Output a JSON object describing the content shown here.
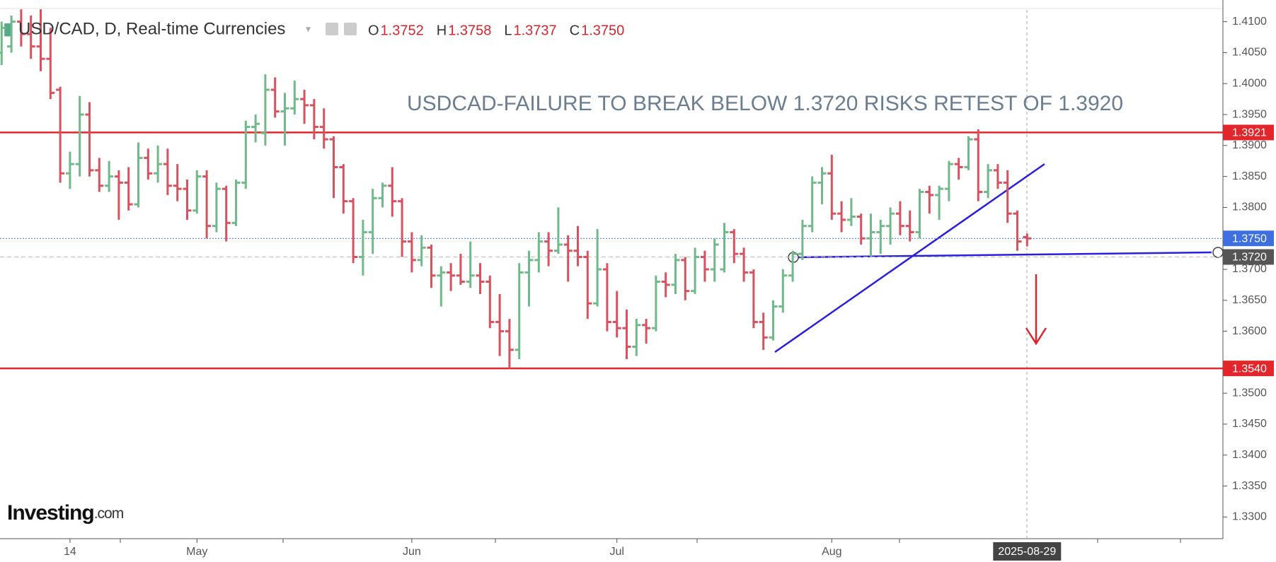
{
  "chart_data": {
    "type": "ohlc",
    "header": {
      "symbol": "USD/CAD, D, Real-time Currencies",
      "fields": [
        {
          "key": "O",
          "value": "1.3752"
        },
        {
          "key": "H",
          "value": "1.3758"
        },
        {
          "key": "L",
          "value": "1.3737"
        },
        {
          "key": "C",
          "value": "1.3750"
        }
      ]
    },
    "annotation": "USDCAD-FAILURE TO BREAK BELOW 1.3720 RISKS RETEST OF 1.3920",
    "logo": {
      "brand": "Investing",
      "suffix": ".com"
    },
    "up_color": "#6fb98a",
    "down_color": "#d9505e",
    "categories": [
      null,
      null,
      null,
      null,
      null,
      null,
      null,
      "14",
      null,
      null,
      null,
      null,
      null,
      null,
      null,
      null,
      null,
      null,
      null,
      null,
      "May",
      null,
      null,
      null,
      null,
      null,
      null,
      null,
      null,
      null,
      null,
      null,
      null,
      null,
      null,
      null,
      null,
      null,
      null,
      null,
      null,
      null,
      "Jun",
      null,
      null,
      null,
      null,
      null,
      null,
      null,
      null,
      null,
      null,
      null,
      null,
      null,
      null,
      null,
      null,
      null,
      null,
      null,
      null,
      "Jul",
      null,
      null,
      null,
      null,
      null,
      null,
      null,
      null,
      null,
      null,
      null,
      null,
      null,
      null,
      null,
      null,
      null,
      null,
      null,
      null,
      null,
      "Aug",
      null,
      null,
      null,
      null,
      null,
      null,
      null,
      null,
      null,
      null,
      null,
      null,
      null,
      null,
      null,
      null,
      null,
      null,
      null,
      "2025-08-29"
    ],
    "values": [
      [
        1.405,
        1.41,
        1.403,
        1.409
      ],
      [
        1.406,
        1.411,
        1.405,
        1.41
      ],
      [
        1.41,
        1.412,
        1.406,
        1.408
      ],
      [
        1.408,
        1.411,
        1.404,
        1.406
      ],
      [
        1.406,
        1.412,
        1.402,
        1.404
      ],
      [
        1.404,
        1.409,
        1.3975,
        1.3985
      ],
      [
        1.399,
        1.3995,
        1.384,
        1.3855
      ],
      [
        1.3855,
        1.389,
        1.383,
        1.387
      ],
      [
        1.387,
        1.398,
        1.385,
        1.395
      ],
      [
        1.395,
        1.397,
        1.385,
        1.386
      ],
      [
        1.386,
        1.388,
        1.3825,
        1.3835
      ],
      [
        1.3835,
        1.3875,
        1.3825,
        1.385
      ],
      [
        1.385,
        1.386,
        1.378,
        1.384
      ],
      [
        1.384,
        1.3865,
        1.3795,
        1.3805
      ],
      [
        1.3805,
        1.3905,
        1.38,
        1.388
      ],
      [
        1.388,
        1.3895,
        1.3845,
        1.3855
      ],
      [
        1.3855,
        1.39,
        1.384,
        1.387
      ],
      [
        1.387,
        1.3895,
        1.382,
        1.3835
      ],
      [
        1.3835,
        1.387,
        1.381,
        1.383
      ],
      [
        1.383,
        1.3845,
        1.378,
        1.3795
      ],
      [
        1.3795,
        1.386,
        1.379,
        1.385
      ],
      [
        1.385,
        1.386,
        1.375,
        1.377
      ],
      [
        1.377,
        1.384,
        1.376,
        1.383
      ],
      [
        1.383,
        1.3835,
        1.3745,
        1.3775
      ],
      [
        1.3775,
        1.3845,
        1.377,
        1.384
      ],
      [
        1.384,
        1.394,
        1.383,
        1.393
      ],
      [
        1.393,
        1.395,
        1.3905,
        1.3935
      ],
      [
        1.392,
        1.4015,
        1.39,
        1.399
      ],
      [
        1.399,
        1.401,
        1.3945,
        1.3955
      ],
      [
        1.3955,
        1.3985,
        1.39,
        1.396
      ],
      [
        1.396,
        1.4005,
        1.395,
        1.3975
      ],
      [
        1.3975,
        1.399,
        1.3935,
        1.3965
      ],
      [
        1.3965,
        1.3975,
        1.391,
        1.393
      ],
      [
        1.393,
        1.396,
        1.3895,
        1.391
      ],
      [
        1.391,
        1.3915,
        1.3815,
        1.3865
      ],
      [
        1.3865,
        1.387,
        1.379,
        1.381
      ],
      [
        1.381,
        1.3815,
        1.371,
        1.372
      ],
      [
        1.372,
        1.378,
        1.369,
        1.376
      ],
      [
        1.376,
        1.383,
        1.3725,
        1.3815
      ],
      [
        1.3815,
        1.384,
        1.38,
        1.3835
      ],
      [
        1.3835,
        1.3865,
        1.3785,
        1.381
      ],
      [
        1.381,
        1.3815,
        1.372,
        1.3745
      ],
      [
        1.3745,
        1.376,
        1.3695,
        1.3715
      ],
      [
        1.3715,
        1.3755,
        1.3705,
        1.3735
      ],
      [
        1.3735,
        1.374,
        1.367,
        1.369
      ],
      [
        1.369,
        1.3705,
        1.364,
        1.3695
      ],
      [
        1.3695,
        1.371,
        1.3665,
        1.369
      ],
      [
        1.369,
        1.3725,
        1.3675,
        1.368
      ],
      [
        1.368,
        1.3745,
        1.367,
        1.369
      ],
      [
        1.369,
        1.371,
        1.366,
        1.368
      ],
      [
        1.368,
        1.369,
        1.3605,
        1.3615
      ],
      [
        1.3615,
        1.366,
        1.356,
        1.36
      ],
      [
        1.36,
        1.362,
        1.354,
        1.357
      ],
      [
        1.357,
        1.371,
        1.3555,
        1.3695
      ],
      [
        1.3695,
        1.373,
        1.364,
        1.3715
      ],
      [
        1.3715,
        1.376,
        1.3695,
        1.3745
      ],
      [
        1.3745,
        1.376,
        1.3705,
        1.373
      ],
      [
        1.373,
        1.38,
        1.3725,
        1.374
      ],
      [
        1.374,
        1.3755,
        1.368,
        1.373
      ],
      [
        1.373,
        1.377,
        1.3705,
        1.372
      ],
      [
        1.372,
        1.373,
        1.362,
        1.3645
      ],
      [
        1.3645,
        1.3765,
        1.364,
        1.37
      ],
      [
        1.37,
        1.371,
        1.36,
        1.3615
      ],
      [
        1.3615,
        1.3665,
        1.359,
        1.3605
      ],
      [
        1.3605,
        1.3635,
        1.3555,
        1.3575
      ],
      [
        1.3575,
        1.362,
        1.356,
        1.361
      ],
      [
        1.361,
        1.362,
        1.358,
        1.3605
      ],
      [
        1.3605,
        1.369,
        1.36,
        1.368
      ],
      [
        1.368,
        1.3695,
        1.3655,
        1.3675
      ],
      [
        1.3675,
        1.3725,
        1.366,
        1.3715
      ],
      [
        1.3715,
        1.372,
        1.365,
        1.3665
      ],
      [
        1.3665,
        1.3735,
        1.366,
        1.372
      ],
      [
        1.372,
        1.373,
        1.368,
        1.37
      ],
      [
        1.37,
        1.375,
        1.368,
        1.374
      ],
      [
        1.37,
        1.3775,
        1.3695,
        1.376
      ],
      [
        1.376,
        1.3765,
        1.371,
        1.3725
      ],
      [
        1.3725,
        1.3735,
        1.368,
        1.3695
      ],
      [
        1.3695,
        1.37,
        1.3605,
        1.3615
      ],
      [
        1.3615,
        1.363,
        1.357,
        1.359
      ],
      [
        1.359,
        1.365,
        1.3585,
        1.364
      ],
      [
        1.364,
        1.37,
        1.363,
        1.369
      ],
      [
        1.369,
        1.373,
        1.368,
        1.3725
      ],
      [
        1.3725,
        1.378,
        1.3715,
        1.377
      ],
      [
        1.377,
        1.385,
        1.376,
        1.384
      ],
      [
        1.384,
        1.3865,
        1.3805,
        1.3855
      ],
      [
        1.3855,
        1.3885,
        1.378,
        1.379
      ],
      [
        1.379,
        1.381,
        1.376,
        1.378
      ],
      [
        1.378,
        1.3815,
        1.377,
        1.3785
      ],
      [
        1.3785,
        1.379,
        1.374,
        1.375
      ],
      [
        1.375,
        1.379,
        1.372,
        1.376
      ],
      [
        1.376,
        1.378,
        1.3725,
        1.377
      ],
      [
        1.377,
        1.38,
        1.374,
        1.379
      ],
      [
        1.379,
        1.381,
        1.3755,
        1.377
      ],
      [
        1.377,
        1.3795,
        1.3745,
        1.376
      ],
      [
        1.376,
        1.383,
        1.375,
        1.3825
      ],
      [
        1.3825,
        1.3835,
        1.379,
        1.382
      ],
      [
        1.382,
        1.3835,
        1.378,
        1.383
      ],
      [
        1.383,
        1.3875,
        1.381,
        1.387
      ],
      [
        1.387,
        1.388,
        1.3845,
        1.3865
      ],
      [
        1.3865,
        1.3915,
        1.386,
        1.391
      ],
      [
        1.391,
        1.3926,
        1.381,
        1.3825
      ],
      [
        1.3825,
        1.387,
        1.3815,
        1.386
      ],
      [
        1.386,
        1.387,
        1.383,
        1.384
      ],
      [
        1.384,
        1.386,
        1.3775,
        1.379
      ],
      [
        1.379,
        1.3795,
        1.373,
        1.3745
      ],
      [
        1.3752,
        1.3758,
        1.3737,
        1.375
      ]
    ],
    "ylim": [
      1.3265,
      1.4135
    ],
    "yticks": [
      {
        "value": 1.33,
        "label": "1.3300"
      },
      {
        "value": 1.335,
        "label": "1.3350"
      },
      {
        "value": 1.34,
        "label": "1.3400"
      },
      {
        "value": 1.345,
        "label": "1.3450"
      },
      {
        "value": 1.35,
        "label": "1.3500"
      },
      {
        "value": 1.36,
        "label": "1.3600"
      },
      {
        "value": 1.365,
        "label": "1.3650"
      },
      {
        "value": 1.37,
        "label": "1.3700"
      },
      {
        "value": 1.38,
        "label": "1.3800"
      },
      {
        "value": 1.385,
        "label": "1.3850"
      },
      {
        "value": 1.39,
        "label": "1.3900"
      },
      {
        "value": 1.395,
        "label": "1.3950"
      },
      {
        "value": 1.4,
        "label": "1.4000"
      },
      {
        "value": 1.405,
        "label": "1.4050"
      },
      {
        "value": 1.41,
        "label": "1.4100"
      }
    ],
    "levels": [
      {
        "price": 1.3921,
        "color": "#e3262b",
        "line": "solid"
      },
      {
        "price": {
          "value": 1.354,
          "label": "1.3540"
        },
        "color": "#e3262b",
        "line": "solid"
      },
      {
        "price": {
          "value": 1.375,
          "label": "1.3750"
        },
        "color": "#3d6fe0",
        "line": "dotted"
      },
      {
        "price": {
          "value": 1.372,
          "label": "1.3720"
        },
        "color": "#555555",
        "line": "dashed"
      }
    ]
  }
}
